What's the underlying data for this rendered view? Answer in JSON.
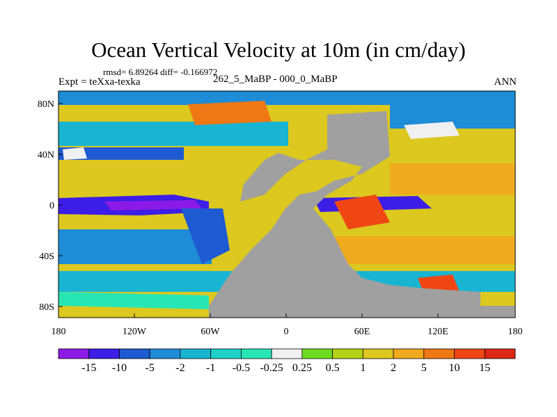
{
  "title": "Ocean Vertical Velocity at 10m (in cm/day)",
  "stats": "rmsd= 6.89264 diff= -0.166972",
  "subtitle": "262_5_MaBP - 000_0_MaBP",
  "expt": "Expt = teXxa-texka",
  "season": "ANN",
  "axes": {
    "lat_labels": [
      "80N",
      "40N",
      "0",
      "40S",
      "80S"
    ],
    "lon_labels": [
      "180",
      "120W",
      "60W",
      "0",
      "60E",
      "120E",
      "180"
    ]
  },
  "colorbar": {
    "labels": [
      "-15",
      "-10",
      "-5",
      "-2",
      "-1",
      "-0.5",
      "-0.25",
      "0.25",
      "0.5",
      "1",
      "2",
      "5",
      "10",
      "15"
    ],
    "colors": [
      "#8c1ae6",
      "#3c1ee6",
      "#1e5ad2",
      "#1e8cd7",
      "#19b4d2",
      "#1ed2c8",
      "#28e6b4",
      "#f0f0f0",
      "#6edc1e",
      "#b4d214",
      "#dcc81e",
      "#f0aa1e",
      "#f07814",
      "#f04614",
      "#dc2814"
    ]
  },
  "colors": {
    "land": "#a0a0a0",
    "background": "#ffffff"
  }
}
